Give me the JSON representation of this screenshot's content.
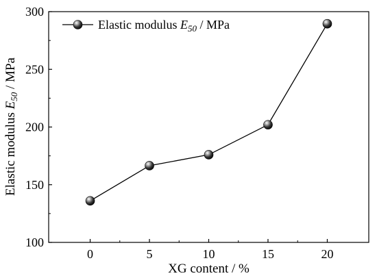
{
  "chart_data": {
    "type": "line",
    "x": [
      0,
      5,
      10,
      15,
      20
    ],
    "series": [
      {
        "name": "Elastic modulus E50 / MPa",
        "name_parts": {
          "prefix": "Elastic modulus ",
          "sym": "E",
          "sub": "50",
          "suffix": " / MPa"
        },
        "values": [
          136,
          166.5,
          176,
          202,
          289.5
        ],
        "color": "#000000",
        "marker": "sphere"
      }
    ],
    "xlabel": "XG content / %",
    "ylabel_parts": {
      "prefix": "Elastic modulus ",
      "sym": "E",
      "sub": "50",
      "suffix": " / MPa"
    },
    "xlim": [
      -3.5,
      23.5
    ],
    "ylim": [
      100,
      300
    ],
    "xticks": [
      0,
      5,
      10,
      15,
      20
    ],
    "yticks": [
      100,
      150,
      200,
      250,
      300
    ],
    "grid": false,
    "legend_position": "top-left"
  }
}
